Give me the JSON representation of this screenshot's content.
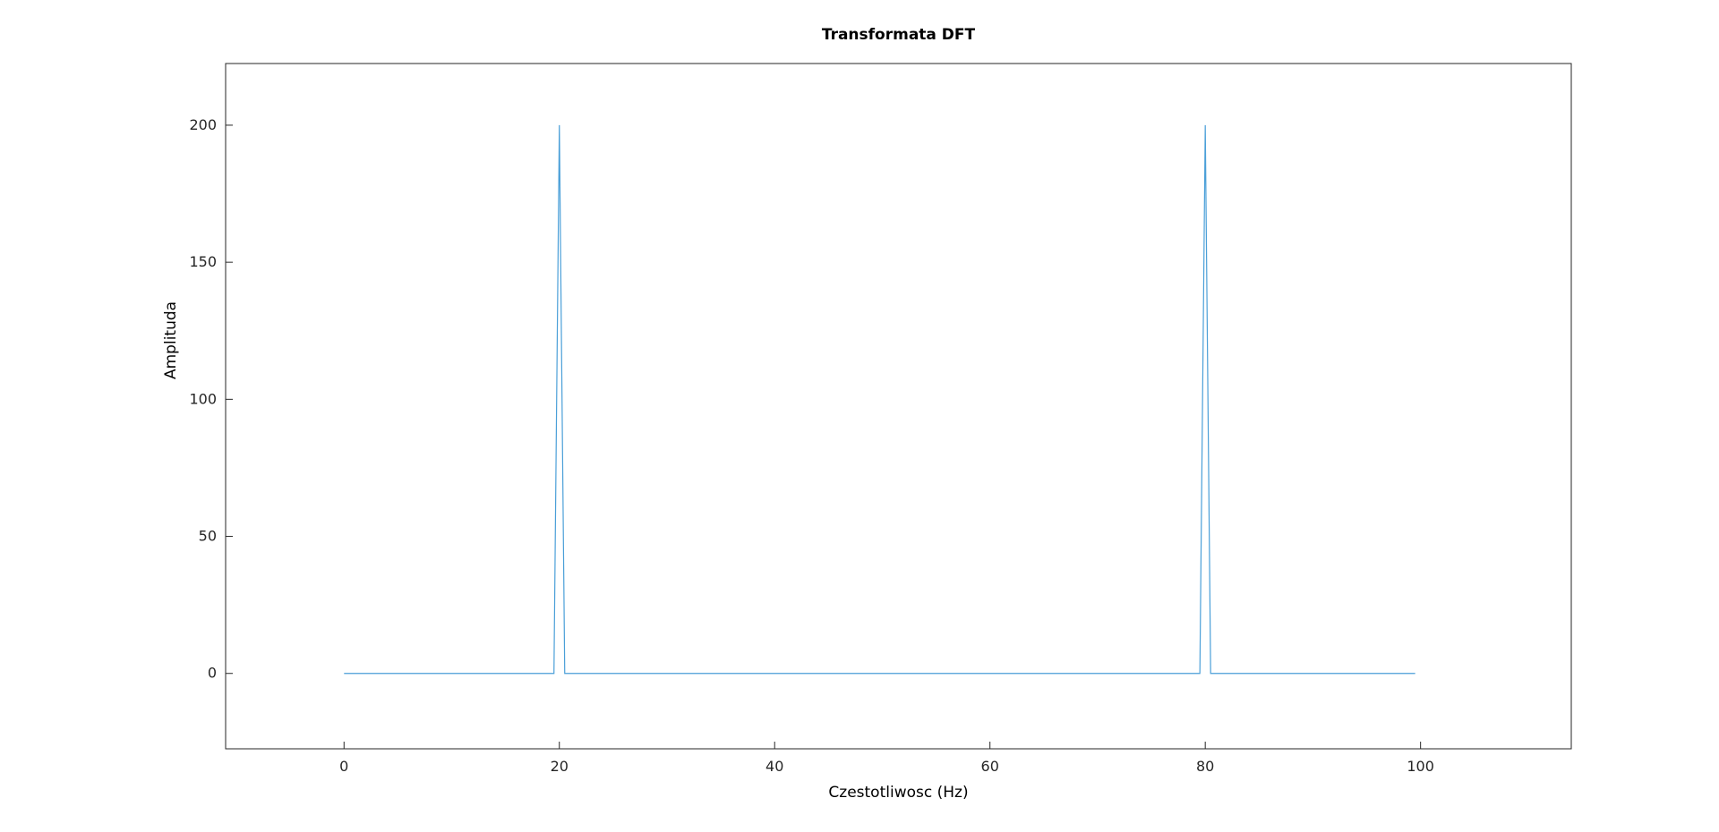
{
  "chart_data": {
    "type": "line",
    "title": "Transformata DFT",
    "xlabel": "Czestotliwosc (Hz)",
    "ylabel": "Amplituda",
    "xlim": [
      -11,
      114
    ],
    "ylim": [
      -27.5,
      222.5
    ],
    "xticks": [
      0,
      20,
      40,
      60,
      80,
      100
    ],
    "yticks": [
      0,
      50,
      100,
      150,
      200
    ],
    "grid": false,
    "series": [
      {
        "color": "#4a9fd8",
        "x": [
          0,
          19.5,
          20,
          20.5,
          79.5,
          80,
          80.5,
          99.5
        ],
        "y": [
          0,
          0,
          200,
          0,
          0,
          200,
          0,
          0
        ]
      }
    ]
  }
}
